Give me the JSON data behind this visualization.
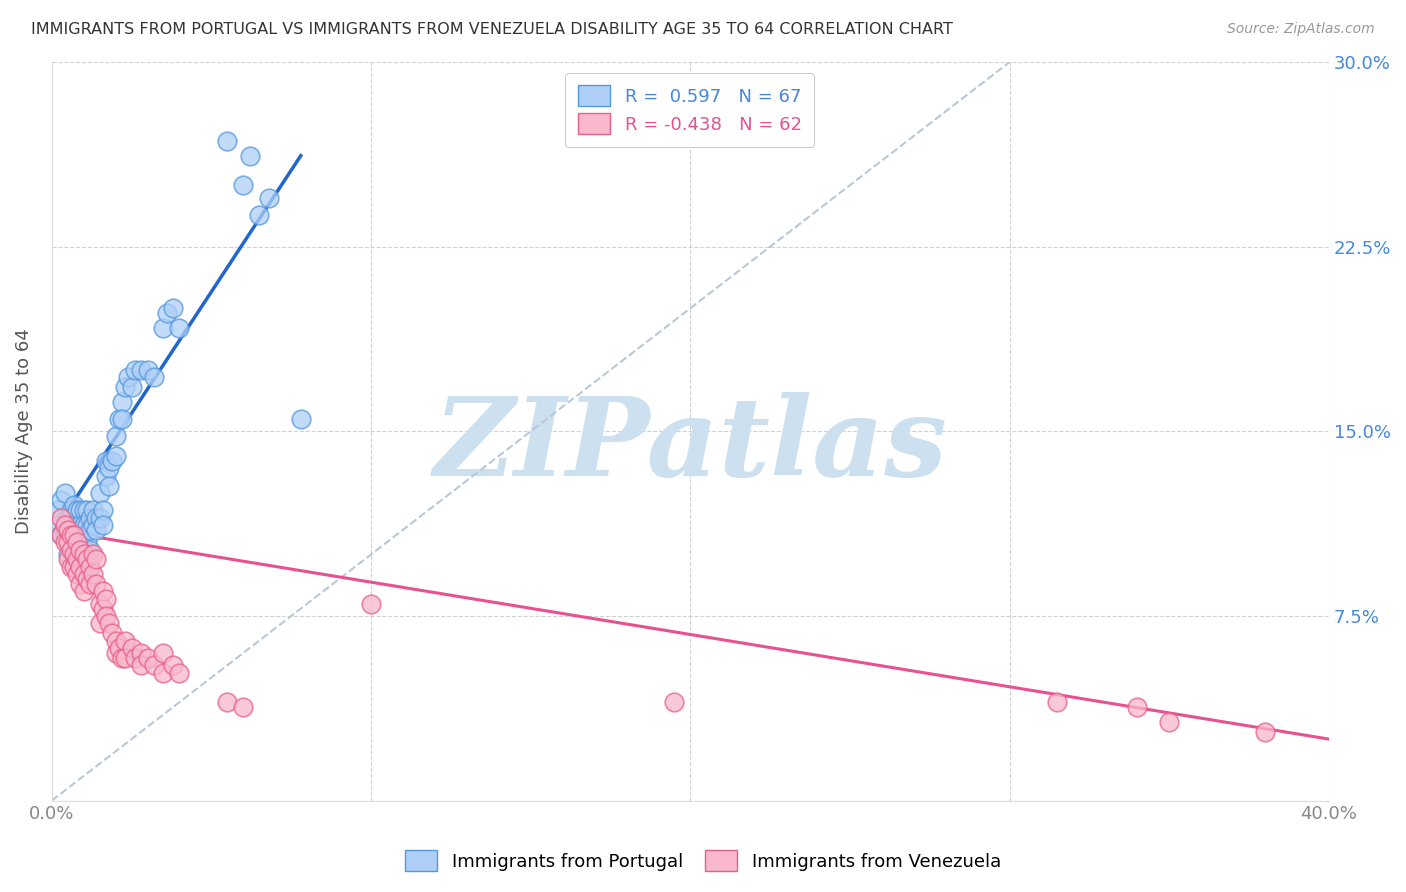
{
  "title": "IMMIGRANTS FROM PORTUGAL VS IMMIGRANTS FROM VENEZUELA DISABILITY AGE 35 TO 64 CORRELATION CHART",
  "source": "Source: ZipAtlas.com",
  "ylabel": "Disability Age 35 to 64",
  "xlim": [
    0.0,
    0.4
  ],
  "ylim": [
    0.0,
    0.3
  ],
  "xticks": [
    0.0,
    0.1,
    0.2,
    0.3,
    0.4
  ],
  "xticklabels": [
    "0.0%",
    "",
    "",
    "",
    "40.0%"
  ],
  "yticks": [
    0.0,
    0.075,
    0.15,
    0.225,
    0.3
  ],
  "yticklabels_right": [
    "",
    "7.5%",
    "15.0%",
    "22.5%",
    "30.0%"
  ],
  "legend_r_portugal": " 0.597",
  "legend_n_portugal": "67",
  "legend_r_venezuela": "-0.438",
  "legend_n_venezuela": "62",
  "color_portugal_fill": "#aecff7",
  "color_portugal_edge": "#5599dd",
  "color_venezuela_fill": "#f9b8cc",
  "color_venezuela_edge": "#e8608a",
  "color_line_portugal": "#2266cc",
  "color_line_venezuela": "#e85090",
  "color_line_diagonal": "#b8c8d8",
  "watermark": "ZIPatlas",
  "watermark_color": "#cce0f0",
  "portugal_scatter": [
    [
      0.002,
      0.118
    ],
    [
      0.002,
      0.112
    ],
    [
      0.003,
      0.122
    ],
    [
      0.003,
      0.108
    ],
    [
      0.004,
      0.125
    ],
    [
      0.004,
      0.108
    ],
    [
      0.005,
      0.115
    ],
    [
      0.005,
      0.11
    ],
    [
      0.005,
      0.1
    ],
    [
      0.006,
      0.118
    ],
    [
      0.006,
      0.112
    ],
    [
      0.006,
      0.105
    ],
    [
      0.007,
      0.12
    ],
    [
      0.007,
      0.112
    ],
    [
      0.007,
      0.105
    ],
    [
      0.008,
      0.118
    ],
    [
      0.008,
      0.112
    ],
    [
      0.008,
      0.108
    ],
    [
      0.008,
      0.102
    ],
    [
      0.009,
      0.118
    ],
    [
      0.009,
      0.112
    ],
    [
      0.009,
      0.108
    ],
    [
      0.01,
      0.118
    ],
    [
      0.01,
      0.112
    ],
    [
      0.01,
      0.108
    ],
    [
      0.01,
      0.102
    ],
    [
      0.011,
      0.118
    ],
    [
      0.011,
      0.112
    ],
    [
      0.011,
      0.105
    ],
    [
      0.012,
      0.115
    ],
    [
      0.012,
      0.11
    ],
    [
      0.012,
      0.102
    ],
    [
      0.013,
      0.118
    ],
    [
      0.013,
      0.112
    ],
    [
      0.014,
      0.115
    ],
    [
      0.014,
      0.11
    ],
    [
      0.015,
      0.125
    ],
    [
      0.015,
      0.115
    ],
    [
      0.016,
      0.118
    ],
    [
      0.016,
      0.112
    ],
    [
      0.017,
      0.138
    ],
    [
      0.017,
      0.132
    ],
    [
      0.018,
      0.135
    ],
    [
      0.018,
      0.128
    ],
    [
      0.019,
      0.138
    ],
    [
      0.02,
      0.148
    ],
    [
      0.02,
      0.14
    ],
    [
      0.021,
      0.155
    ],
    [
      0.022,
      0.162
    ],
    [
      0.022,
      0.155
    ],
    [
      0.023,
      0.168
    ],
    [
      0.024,
      0.172
    ],
    [
      0.025,
      0.168
    ],
    [
      0.026,
      0.175
    ],
    [
      0.028,
      0.175
    ],
    [
      0.03,
      0.175
    ],
    [
      0.032,
      0.172
    ],
    [
      0.035,
      0.192
    ],
    [
      0.036,
      0.198
    ],
    [
      0.038,
      0.2
    ],
    [
      0.04,
      0.192
    ],
    [
      0.055,
      0.268
    ],
    [
      0.06,
      0.25
    ],
    [
      0.062,
      0.262
    ],
    [
      0.065,
      0.238
    ],
    [
      0.068,
      0.245
    ],
    [
      0.078,
      0.155
    ]
  ],
  "venezuela_scatter": [
    [
      0.003,
      0.115
    ],
    [
      0.003,
      0.108
    ],
    [
      0.004,
      0.112
    ],
    [
      0.004,
      0.105
    ],
    [
      0.005,
      0.11
    ],
    [
      0.005,
      0.105
    ],
    [
      0.005,
      0.098
    ],
    [
      0.006,
      0.108
    ],
    [
      0.006,
      0.102
    ],
    [
      0.006,
      0.095
    ],
    [
      0.007,
      0.108
    ],
    [
      0.007,
      0.1
    ],
    [
      0.007,
      0.095
    ],
    [
      0.008,
      0.105
    ],
    [
      0.008,
      0.098
    ],
    [
      0.008,
      0.092
    ],
    [
      0.009,
      0.102
    ],
    [
      0.009,
      0.095
    ],
    [
      0.009,
      0.088
    ],
    [
      0.01,
      0.1
    ],
    [
      0.01,
      0.092
    ],
    [
      0.01,
      0.085
    ],
    [
      0.011,
      0.098
    ],
    [
      0.011,
      0.09
    ],
    [
      0.012,
      0.095
    ],
    [
      0.012,
      0.088
    ],
    [
      0.013,
      0.1
    ],
    [
      0.013,
      0.092
    ],
    [
      0.014,
      0.098
    ],
    [
      0.014,
      0.088
    ],
    [
      0.015,
      0.08
    ],
    [
      0.015,
      0.072
    ],
    [
      0.016,
      0.085
    ],
    [
      0.016,
      0.078
    ],
    [
      0.017,
      0.082
    ],
    [
      0.017,
      0.075
    ],
    [
      0.018,
      0.072
    ],
    [
      0.019,
      0.068
    ],
    [
      0.02,
      0.065
    ],
    [
      0.02,
      0.06
    ],
    [
      0.021,
      0.062
    ],
    [
      0.022,
      0.058
    ],
    [
      0.023,
      0.065
    ],
    [
      0.023,
      0.058
    ],
    [
      0.025,
      0.062
    ],
    [
      0.026,
      0.058
    ],
    [
      0.028,
      0.06
    ],
    [
      0.028,
      0.055
    ],
    [
      0.03,
      0.058
    ],
    [
      0.032,
      0.055
    ],
    [
      0.035,
      0.06
    ],
    [
      0.035,
      0.052
    ],
    [
      0.038,
      0.055
    ],
    [
      0.04,
      0.052
    ],
    [
      0.055,
      0.04
    ],
    [
      0.06,
      0.038
    ],
    [
      0.1,
      0.08
    ],
    [
      0.195,
      0.04
    ],
    [
      0.315,
      0.04
    ],
    [
      0.34,
      0.038
    ],
    [
      0.35,
      0.032
    ],
    [
      0.38,
      0.028
    ]
  ],
  "portugal_line_x": [
    0.0,
    0.078
  ],
  "portugal_line_y": [
    0.108,
    0.262
  ],
  "venezuela_line_x": [
    0.0,
    0.4
  ],
  "venezuela_line_y": [
    0.11,
    0.025
  ],
  "diagonal_line_x": [
    0.0,
    0.3
  ],
  "diagonal_line_y": [
    0.0,
    0.3
  ]
}
